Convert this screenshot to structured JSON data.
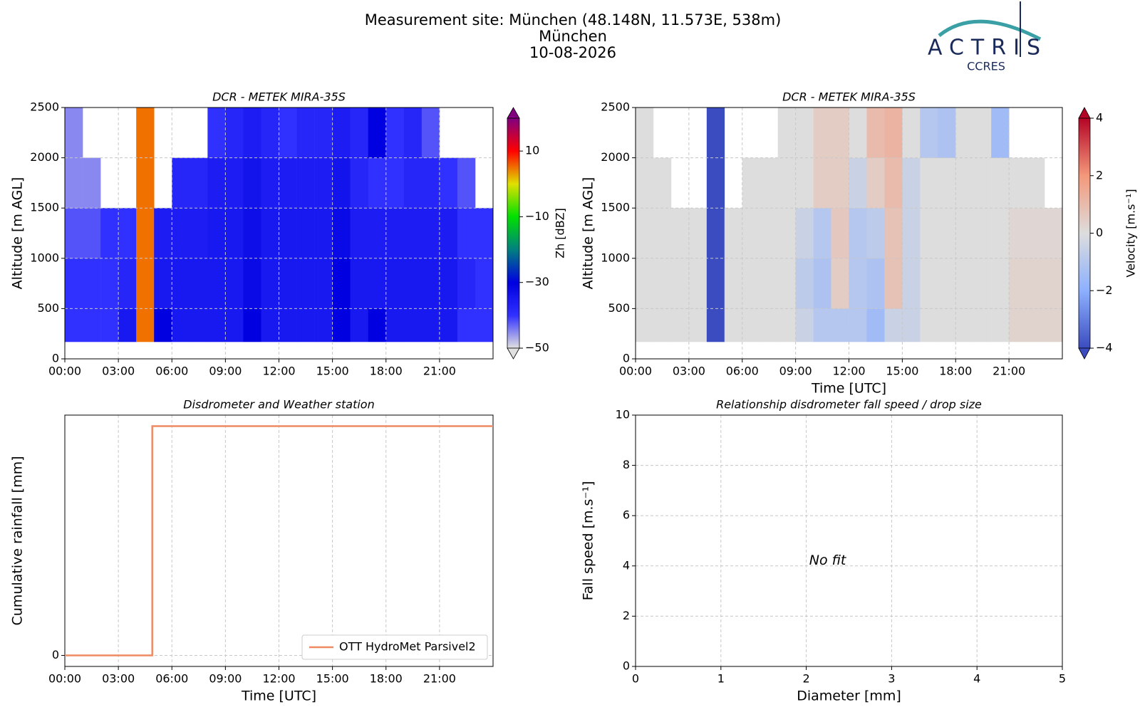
{
  "header": {
    "title": [
      "Measurement site: München (48.148N, 11.573E, 538m)",
      "München",
      "10-08-2026"
    ],
    "logo": "ACTRIS",
    "logo_sub": "CCRES"
  },
  "chart_data": [
    {
      "type": "heatmap",
      "title": "DCR - METEK MIRA-35S",
      "y_label": "Altitude [m AGL]",
      "colorbar_label": "Zh [dBZ]",
      "xlim": [
        0,
        24
      ],
      "xticks": [
        {
          "value": 0,
          "label": "00:00"
        },
        {
          "value": 3,
          "label": "03:00"
        },
        {
          "value": 6,
          "label": "06:00"
        },
        {
          "value": 9,
          "label": "09:00"
        },
        {
          "value": 12,
          "label": "12:00"
        },
        {
          "value": 15,
          "label": "15:00"
        },
        {
          "value": 18,
          "label": "18:00"
        },
        {
          "value": 21,
          "label": "21:00"
        }
      ],
      "ylim": [
        0,
        2500
      ],
      "yticks": [
        0,
        500,
        1000,
        1500,
        2000,
        2500
      ],
      "grid": true,
      "x_edges": [
        0,
        1,
        2,
        3,
        4,
        5,
        6,
        7,
        8,
        9,
        10,
        11,
        12,
        13,
        14,
        15,
        16,
        17,
        18,
        19,
        20,
        21,
        22,
        23,
        24
      ],
      "y_edges": [
        170,
        500,
        1000,
        1500,
        2000,
        2500
      ],
      "z": [
        [
          -40,
          -40,
          -40,
          -35,
          5,
          -30,
          -35,
          -35,
          -35,
          -35,
          -30,
          -35,
          -35,
          -35,
          -35,
          -30,
          -35,
          -30,
          -35,
          -35,
          -35,
          -35,
          -40,
          -40
        ],
        [
          -40,
          -40,
          -40,
          -38,
          5,
          -35,
          -35,
          -35,
          -35,
          -35,
          -32,
          -35,
          -35,
          -35,
          -35,
          -30,
          -35,
          -35,
          -35,
          -35,
          -35,
          -35,
          -38,
          -40
        ],
        [
          -42,
          -42,
          -40,
          -40,
          5,
          -36,
          -36,
          -36,
          -35,
          -35,
          -33,
          -35,
          -35,
          -35,
          -35,
          -32,
          -36,
          -36,
          -36,
          -36,
          -36,
          -36,
          -40,
          -40
        ],
        [
          -45,
          -45,
          null,
          null,
          5,
          null,
          -38,
          -38,
          -36,
          -36,
          -34,
          -36,
          -36,
          -36,
          -36,
          -34,
          -38,
          -40,
          -40,
          -38,
          -38,
          -40,
          -42,
          null
        ],
        [
          -45,
          null,
          null,
          null,
          5,
          null,
          null,
          null,
          -40,
          -38,
          -36,
          -38,
          -40,
          -38,
          -38,
          -36,
          -38,
          -30,
          -40,
          -38,
          -42,
          null,
          null,
          null
        ]
      ],
      "zlim": [
        -50,
        20
      ],
      "zticks": [
        {
          "value": -50,
          "label": "−50"
        },
        {
          "value": -30,
          "label": "−30"
        },
        {
          "value": -10,
          "label": "−10"
        },
        10
      ],
      "colors": [
        "#e0e0e0",
        "#3030ff",
        "#0000e0",
        "#008080",
        "#00e000",
        "#e0e000",
        "#ff0000",
        "#800080"
      ]
    },
    {
      "type": "heatmap",
      "title": "DCR - METEK MIRA-35S",
      "x_label": "Time [UTC]",
      "y_label": "Altitude [m AGL]",
      "colorbar_label": "Velocity [m.s⁻¹]",
      "xlim": [
        0,
        24
      ],
      "xticks": [
        {
          "value": 0,
          "label": "00:00"
        },
        {
          "value": 3,
          "label": "03:00"
        },
        {
          "value": 6,
          "label": "06:00"
        },
        {
          "value": 9,
          "label": "09:00"
        },
        {
          "value": 12,
          "label": "12:00"
        },
        {
          "value": 15,
          "label": "15:00"
        },
        {
          "value": 18,
          "label": "18:00"
        },
        {
          "value": 21,
          "label": "21:00"
        }
      ],
      "ylim": [
        0,
        2500
      ],
      "yticks": [
        0,
        500,
        1000,
        1500,
        2000,
        2500
      ],
      "grid": true,
      "x_edges": [
        0,
        1,
        2,
        3,
        4,
        5,
        6,
        7,
        8,
        9,
        10,
        11,
        12,
        13,
        14,
        15,
        16,
        17,
        18,
        19,
        20,
        21,
        22,
        23,
        24
      ],
      "y_edges": [
        170,
        500,
        1000,
        1500,
        2000,
        2500
      ],
      "z": [
        [
          0,
          0,
          0,
          0,
          -4,
          0,
          0,
          0,
          0,
          -0.5,
          -1,
          -1,
          -1,
          -1.5,
          -0.5,
          -0.5,
          0,
          0,
          0,
          0,
          0,
          0.3,
          0.3,
          0.3
        ],
        [
          0,
          0,
          0,
          0,
          -4,
          0,
          0,
          0,
          0,
          -0.8,
          -1.2,
          0.5,
          -1,
          -1.2,
          0.8,
          -0.5,
          0,
          0,
          0,
          0,
          0,
          0.3,
          0.3,
          0.3
        ],
        [
          0,
          0,
          0,
          0,
          -4,
          0,
          0,
          0,
          0,
          -0.5,
          -1,
          0.6,
          -1,
          -0.8,
          0.8,
          -0.5,
          0,
          0,
          0,
          0,
          0,
          0.2,
          0.2,
          0.2
        ],
        [
          0,
          0,
          null,
          null,
          -4,
          null,
          0,
          0,
          0,
          0,
          0.5,
          0.5,
          -0.5,
          0.5,
          1,
          -0.5,
          0,
          0,
          0,
          0,
          0,
          0,
          0,
          null
        ],
        [
          0,
          null,
          null,
          null,
          -4,
          null,
          null,
          null,
          0,
          0,
          0.5,
          0.5,
          0,
          1,
          1.2,
          0,
          -1,
          -1.2,
          0,
          0,
          -1.5,
          null,
          null,
          null
        ]
      ],
      "zlim": [
        -4,
        4
      ],
      "zticks": [
        {
          "value": -4,
          "label": "−4"
        },
        {
          "value": -2,
          "label": "−2"
        },
        0,
        2,
        4
      ],
      "colors": [
        "#3b4cc0",
        "#8db0fe",
        "#dddddd",
        "#f4987a",
        "#b40426"
      ]
    },
    {
      "type": "line",
      "title": "Disdrometer and Weather station",
      "x_label": "Time [UTC]",
      "y_label": "Cumulative rainfall [mm]",
      "xlim": [
        0,
        24
      ],
      "xticks": [
        {
          "value": 0,
          "label": "00:00"
        },
        {
          "value": 3,
          "label": "03:00"
        },
        {
          "value": 6,
          "label": "06:00"
        },
        {
          "value": 9,
          "label": "09:00"
        },
        {
          "value": 12,
          "label": "12:00"
        },
        {
          "value": 15,
          "label": "15:00"
        },
        {
          "value": 18,
          "label": "18:00"
        },
        {
          "value": 21,
          "label": "21:00"
        }
      ],
      "ylim": [
        -0.048,
        1.048
      ],
      "yticks": [
        0
      ],
      "grid": true,
      "legend": "lower right",
      "series": [
        {
          "name": "OTT HydroMet Parsivel2",
          "color": "#ef8a62",
          "x": [
            0,
            4.9,
            4.9,
            24
          ],
          "values": [
            0,
            0,
            1,
            1
          ]
        }
      ]
    },
    {
      "type": "scatter",
      "title": "Relationship disdrometer fall speed / drop size",
      "x_label": "Diameter [mm]",
      "y_label": "Fall speed [m.s⁻¹]",
      "xlim": [
        0,
        5
      ],
      "xticks": [
        0,
        1,
        2,
        3,
        4,
        5
      ],
      "ylim": [
        0,
        10
      ],
      "yticks": [
        0,
        2,
        4,
        6,
        8,
        10
      ],
      "grid": true,
      "annotation": "No fit"
    }
  ]
}
